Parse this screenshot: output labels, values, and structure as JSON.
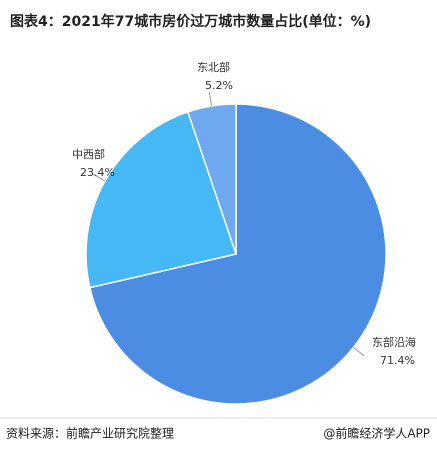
{
  "chart_data": {
    "type": "pie",
    "title": "图表4：2021年77城市房价过万城市数量占比(单位：%)",
    "categories": [
      "东部沿海",
      "中西部",
      "东北部"
    ],
    "values": [
      71.4,
      23.4,
      5.2
    ],
    "value_labels": [
      "71.4%",
      "23.4%",
      "5.2%"
    ],
    "colors": [
      "#4a8de2",
      "#45b8f5",
      "#6ea8ee"
    ]
  },
  "footer": {
    "source": "资料来源：前瞻产业研究院整理",
    "brand": "@前瞻经济学人APP"
  }
}
